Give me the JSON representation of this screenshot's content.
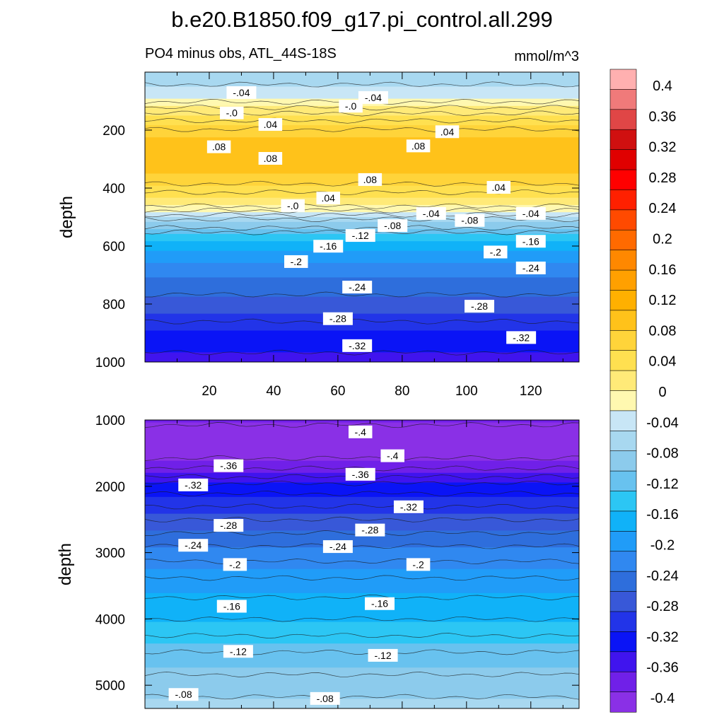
{
  "figure": {
    "title": "b.e20.B1850.f09_g17.pi_control.all.299",
    "subtitle_left": "PO4 minus obs, ATL_44S-18S",
    "subtitle_right": "mmol/m^3"
  },
  "chart_data": [
    {
      "type": "heatmap",
      "panel": "upper",
      "ylabel": "depth",
      "xlabel": "",
      "xlim": [
        0,
        135
      ],
      "ylim": [
        1000,
        0
      ],
      "x_ticks": [
        "20",
        "40",
        "60",
        "80",
        "100",
        "120"
      ],
      "y_ticks": [
        "200",
        "400",
        "600",
        "800",
        "1000"
      ],
      "profile": [
        {
          "depth": 0,
          "value": -0.06
        },
        {
          "depth": 25,
          "value": -0.08
        },
        {
          "depth": 50,
          "value": -0.05
        },
        {
          "depth": 80,
          "value": -0.04
        },
        {
          "depth": 110,
          "value": -0.01
        },
        {
          "depth": 140,
          "value": 0.02
        },
        {
          "depth": 180,
          "value": 0.05
        },
        {
          "depth": 230,
          "value": 0.08
        },
        {
          "depth": 300,
          "value": 0.09
        },
        {
          "depth": 350,
          "value": 0.08
        },
        {
          "depth": 400,
          "value": 0.05
        },
        {
          "depth": 440,
          "value": 0.02
        },
        {
          "depth": 470,
          "value": -0.01
        },
        {
          "depth": 520,
          "value": -0.08
        },
        {
          "depth": 560,
          "value": -0.13
        },
        {
          "depth": 600,
          "value": -0.17
        },
        {
          "depth": 660,
          "value": -0.21
        },
        {
          "depth": 740,
          "value": -0.25
        },
        {
          "depth": 820,
          "value": -0.28
        },
        {
          "depth": 900,
          "value": -0.32
        },
        {
          "depth": 1000,
          "value": -0.35
        }
      ],
      "contour_labels": [
        {
          "text": "-.04",
          "x": 30,
          "depth": 73
        },
        {
          "text": "-.04",
          "x": 71,
          "depth": 90
        },
        {
          "text": "-.0",
          "x": 27,
          "depth": 143
        },
        {
          "text": "-.0",
          "x": 64,
          "depth": 120
        },
        {
          "text": ".04",
          "x": 39,
          "depth": 183
        },
        {
          "text": ".04",
          "x": 94,
          "depth": 208
        },
        {
          "text": ".08",
          "x": 23,
          "depth": 260
        },
        {
          "text": ".08",
          "x": 39,
          "depth": 300
        },
        {
          "text": ".08",
          "x": 85,
          "depth": 257
        },
        {
          "text": ".08",
          "x": 70,
          "depth": 373
        },
        {
          "text": ".04",
          "x": 57,
          "depth": 437
        },
        {
          "text": ".04",
          "x": 110,
          "depth": 400
        },
        {
          "text": "-.0",
          "x": 46,
          "depth": 463
        },
        {
          "text": "-.04",
          "x": 89,
          "depth": 490
        },
        {
          "text": "-.04",
          "x": 120,
          "depth": 490
        },
        {
          "text": "-.08",
          "x": 77,
          "depth": 532
        },
        {
          "text": "-.08",
          "x": 101,
          "depth": 514
        },
        {
          "text": "-.12",
          "x": 67,
          "depth": 566
        },
        {
          "text": "-.16",
          "x": 57,
          "depth": 603
        },
        {
          "text": "-.16",
          "x": 120,
          "depth": 586
        },
        {
          "text": "-.2",
          "x": 47,
          "depth": 656
        },
        {
          "text": "-.2",
          "x": 109,
          "depth": 623
        },
        {
          "text": "-.24",
          "x": 66,
          "depth": 744
        },
        {
          "text": "-.24",
          "x": 120,
          "depth": 678
        },
        {
          "text": "-.28",
          "x": 60,
          "depth": 853
        },
        {
          "text": "-.28",
          "x": 104,
          "depth": 810
        },
        {
          "text": "-.32",
          "x": 66,
          "depth": 946
        },
        {
          "text": "-.32",
          "x": 117,
          "depth": 918
        }
      ]
    },
    {
      "type": "heatmap",
      "panel": "lower",
      "ylabel": "depth",
      "xlabel": "",
      "xlim": [
        0,
        135
      ],
      "ylim": [
        5350,
        1000
      ],
      "y_ticks": [
        "1000",
        "2000",
        "3000",
        "4000",
        "5000"
      ],
      "profile": [
        {
          "depth": 1000,
          "value": -0.38
        },
        {
          "depth": 1100,
          "value": -0.41
        },
        {
          "depth": 1500,
          "value": -0.41
        },
        {
          "depth": 1800,
          "value": -0.37
        },
        {
          "depth": 2000,
          "value": -0.33
        },
        {
          "depth": 2500,
          "value": -0.28
        },
        {
          "depth": 3000,
          "value": -0.23
        },
        {
          "depth": 3500,
          "value": -0.19
        },
        {
          "depth": 4000,
          "value": -0.16
        },
        {
          "depth": 4500,
          "value": -0.12
        },
        {
          "depth": 5000,
          "value": -0.09
        },
        {
          "depth": 5350,
          "value": -0.07
        }
      ],
      "contour_labels": [
        {
          "text": "-.4",
          "x": 67,
          "depth": 1190
        },
        {
          "text": "-.4",
          "x": 77,
          "depth": 1550
        },
        {
          "text": "-.36",
          "x": 26,
          "depth": 1700
        },
        {
          "text": "-.36",
          "x": 67,
          "depth": 1830
        },
        {
          "text": "-.32",
          "x": 15,
          "depth": 1990
        },
        {
          "text": "-.32",
          "x": 82,
          "depth": 2320
        },
        {
          "text": "-.28",
          "x": 26,
          "depth": 2600
        },
        {
          "text": "-.28",
          "x": 70,
          "depth": 2670
        },
        {
          "text": "-.24",
          "x": 15,
          "depth": 2900
        },
        {
          "text": "-.24",
          "x": 60,
          "depth": 2920
        },
        {
          "text": "-.2",
          "x": 28,
          "depth": 3190
        },
        {
          "text": "-.2",
          "x": 85,
          "depth": 3190
        },
        {
          "text": "-.16",
          "x": 27,
          "depth": 3820
        },
        {
          "text": "-.16",
          "x": 73,
          "depth": 3780
        },
        {
          "text": "-.12",
          "x": 29,
          "depth": 4500
        },
        {
          "text": "-.12",
          "x": 74,
          "depth": 4560
        },
        {
          "text": "-.08",
          "x": 12,
          "depth": 5150
        },
        {
          "text": "-.08",
          "x": 56,
          "depth": 5210
        }
      ]
    }
  ],
  "colorbar": {
    "labels": [
      "0.4",
      "0.36",
      "0.32",
      "0.28",
      "0.24",
      "0.2",
      "0.16",
      "0.12",
      "0.08",
      "0.04",
      "0",
      "-0.04",
      "-0.08",
      "-0.12",
      "-0.16",
      "-0.2",
      "-0.24",
      "-0.28",
      "-0.32",
      "-0.36",
      "-0.4"
    ],
    "colors": [
      "#ffb0b0",
      "#f07a7a",
      "#e04646",
      "#d01010",
      "#e00000",
      "#ff0000",
      "#ff2000",
      "#ff4a00",
      "#ff6a00",
      "#ff8800",
      "#ffa000",
      "#ffb000",
      "#ffc21a",
      "#ffd43a",
      "#ffe050",
      "#ffea78",
      "#fff8b0",
      "#c8e6f6",
      "#a8d8f0",
      "#8ccbec",
      "#68c2ef",
      "#2cc6f4",
      "#10b2f8",
      "#209cf8",
      "#3088f0",
      "#2e6edc",
      "#3858d8",
      "#2234e8",
      "#0a14f6",
      "#4014ee",
      "#7020e8",
      "#8a30e6"
    ]
  }
}
